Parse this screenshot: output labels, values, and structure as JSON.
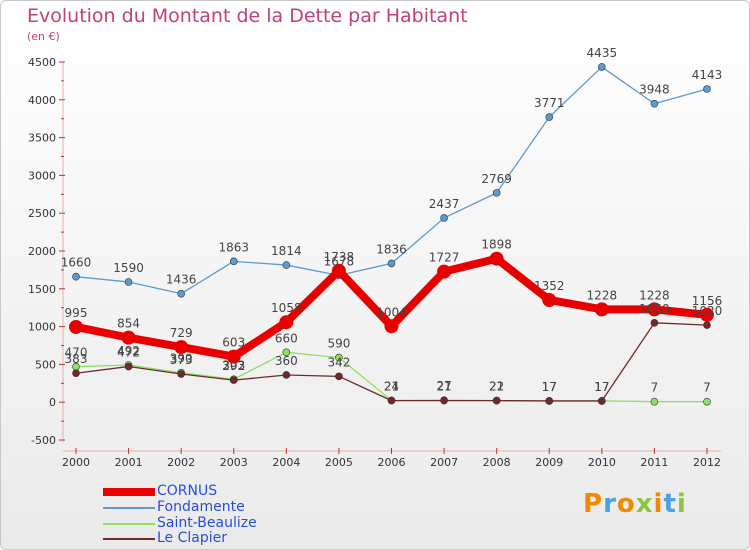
{
  "page": {
    "title": "Evolution du Montant de la Dette par Habitant",
    "subtitle": "(en €)",
    "logo": "Proxiti"
  },
  "chart_data": {
    "type": "line",
    "title": "Evolution du Montant de la Dette par Habitant",
    "subtitle": "(en €)",
    "xlabel": "",
    "ylabel": "",
    "x": [
      "2000",
      "2001",
      "2002",
      "2003",
      "2004",
      "2005",
      "2006",
      "2007",
      "2008",
      "2009",
      "2010",
      "2011",
      "2012"
    ],
    "ylim": [
      -500,
      4500
    ],
    "yticks": [
      "-500",
      "0",
      "500",
      "1000",
      "1500",
      "2000",
      "2500",
      "3000",
      "3500",
      "4000",
      "4500"
    ],
    "grid": false,
    "legend_position": "bottom-left",
    "series": [
      {
        "name": "CORNUS",
        "color": "#e80000",
        "values": [
          995,
          854,
          729,
          603,
          1058,
          1738,
          1004,
          1727,
          1898,
          1352,
          1228,
          1228,
          1156
        ],
        "labels": [
          "995",
          "854",
          "729",
          "603",
          "1058",
          "1738",
          "1004",
          "1727",
          "1898",
          "1352",
          "1228",
          "1228",
          "1156"
        ]
      },
      {
        "name": "Fondamente",
        "color": "#5b9bd0",
        "values": [
          1660,
          1590,
          1436,
          1863,
          1814,
          1678,
          1836,
          2437,
          2769,
          3771,
          4435,
          3948,
          4143
        ],
        "labels": [
          "1660",
          "1590",
          "1436",
          "1863",
          "1814",
          "1678",
          "1836",
          "2437",
          "2769",
          "3771",
          "4435",
          "3948",
          "4143"
        ]
      },
      {
        "name": "Saint-Beaulize",
        "color": "#90e060",
        "values": [
          470,
          492,
          390,
          303,
          660,
          590,
          24,
          27,
          22,
          17,
          17,
          7,
          7
        ],
        "labels": [
          "470",
          "492",
          "390",
          "303",
          "660",
          "590",
          "24",
          "27",
          "22",
          "17",
          "17",
          "7",
          "7"
        ]
      },
      {
        "name": "Le Clapier",
        "color": "#6e2a2a",
        "values": [
          383,
          472,
          373,
          292,
          360,
          342,
          21,
          21,
          21,
          17,
          17,
          1050,
          1020
        ],
        "labels": [
          "383",
          "472",
          "373",
          "292",
          "360",
          "342",
          "21",
          "21",
          "21",
          "17",
          "17",
          "1050",
          "1020"
        ]
      }
    ]
  }
}
